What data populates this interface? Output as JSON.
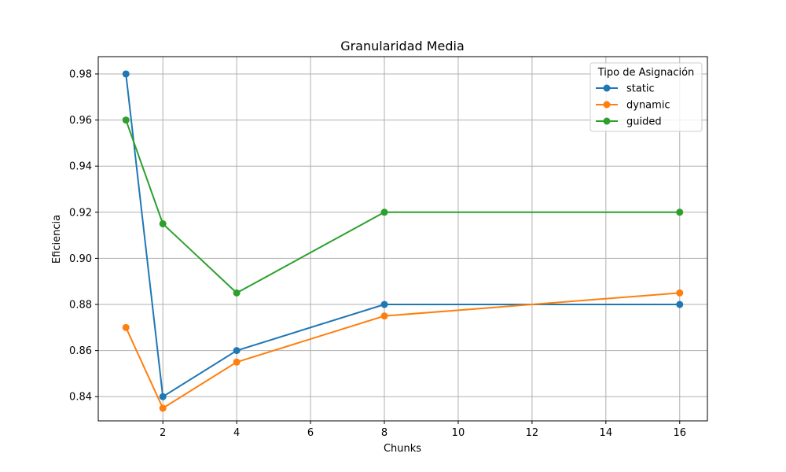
{
  "chart_data": {
    "type": "line",
    "title": "Granularidad Media",
    "xlabel": "Chunks",
    "ylabel": "Eficiencia",
    "x": [
      1,
      2,
      4,
      8,
      16
    ],
    "xlim": [
      0.25,
      16.75
    ],
    "ylim": [
      0.8295,
      0.9875
    ],
    "xticks": [
      2,
      4,
      6,
      8,
      10,
      12,
      14,
      16
    ],
    "yticks": [
      0.84,
      0.86,
      0.88,
      0.9,
      0.92,
      0.94,
      0.96,
      0.98
    ],
    "grid": true,
    "legend": {
      "title": "Tipo de Asignación",
      "placement": "top-right"
    },
    "series": [
      {
        "name": "static",
        "color": "#1f77b4",
        "values": [
          0.98,
          0.84,
          0.86,
          0.88,
          0.88
        ]
      },
      {
        "name": "dynamic",
        "color": "#ff7f0e",
        "values": [
          0.87,
          0.835,
          0.855,
          0.875,
          0.885
        ]
      },
      {
        "name": "guided",
        "color": "#2ca02c",
        "values": [
          0.96,
          0.915,
          0.885,
          0.92,
          0.92
        ]
      }
    ]
  }
}
